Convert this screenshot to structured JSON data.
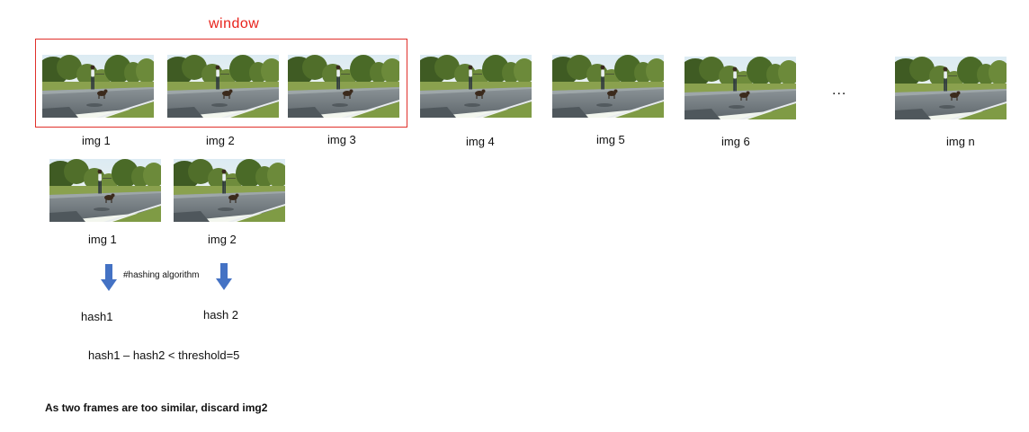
{
  "window_label": "window",
  "ellipsis": "...",
  "top_frames": [
    {
      "label": "img 1"
    },
    {
      "label": "img 2"
    },
    {
      "label": "img 3"
    },
    {
      "label": "img 4"
    },
    {
      "label": "img 5"
    },
    {
      "label": "img 6"
    },
    {
      "label": "img n"
    }
  ],
  "compare_frames": [
    {
      "label": "img 1"
    },
    {
      "label": "img 2"
    }
  ],
  "algorithm_label": "#hashing algorithm",
  "hashes": [
    "hash1",
    "hash 2"
  ],
  "formula": "hash1 – hash2 < threshold=5",
  "conclusion": "As two frames are too similar, discard img2",
  "colors": {
    "window_border": "#e0302a",
    "window_text": "#e8221b",
    "arrow_fill": "#4472c4"
  }
}
